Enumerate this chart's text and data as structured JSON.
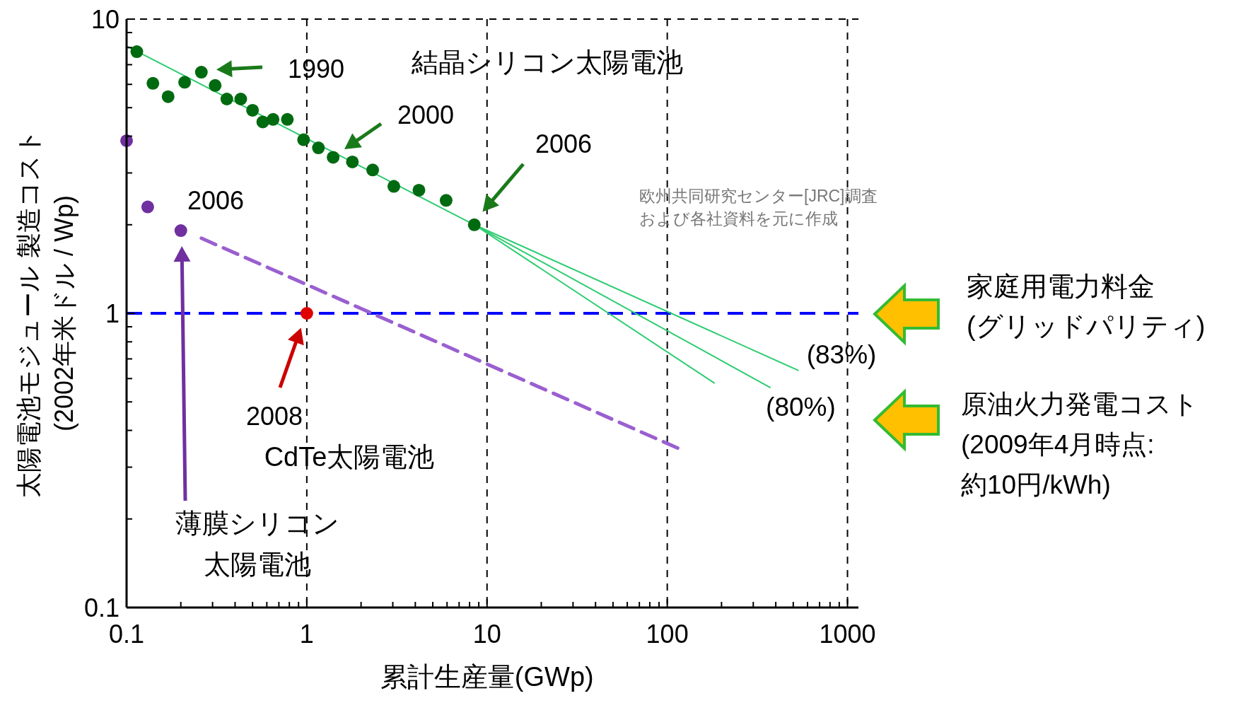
{
  "chart_data": {
    "type": "scatter",
    "xlabel": "累計生産量(GWp)",
    "ylabel": "太陽電池モジュール 製造コスト\n(2002年米ドル / Wp)",
    "log": "xy",
    "grid": "x",
    "xlim": [
      0.1,
      1150
    ],
    "ylim": [
      0.1,
      10
    ],
    "xticks": [
      0.1,
      {
        "value": 0.2,
        "label": null
      },
      {
        "value": 0.3,
        "label": null
      },
      {
        "value": 0.4,
        "label": null
      },
      {
        "value": 0.5,
        "label": null
      },
      {
        "value": 0.6,
        "label": null
      },
      {
        "value": 0.7,
        "label": null
      },
      {
        "value": 0.8,
        "label": null
      },
      {
        "value": 0.9,
        "label": null
      },
      1,
      {
        "value": 2,
        "label": null
      },
      {
        "value": 3,
        "label": null
      },
      {
        "value": 4,
        "label": null
      },
      {
        "value": 5,
        "label": null
      },
      {
        "value": 6,
        "label": null
      },
      {
        "value": 7,
        "label": null
      },
      {
        "value": 8,
        "label": null
      },
      {
        "value": 9,
        "label": null
      },
      10,
      {
        "value": 20,
        "label": null
      },
      {
        "value": 30,
        "label": null
      },
      {
        "value": 40,
        "label": null
      },
      {
        "value": 50,
        "label": null
      },
      {
        "value": 60,
        "label": null
      },
      {
        "value": 70,
        "label": null
      },
      {
        "value": 80,
        "label": null
      },
      {
        "value": 90,
        "label": null
      },
      100,
      {
        "value": 200,
        "label": null
      },
      {
        "value": 300,
        "label": null
      },
      {
        "value": 400,
        "label": null
      },
      {
        "value": 500,
        "label": null
      },
      {
        "value": 600,
        "label": null
      },
      {
        "value": 700,
        "label": null
      },
      {
        "value": 800,
        "label": null
      },
      {
        "value": 900,
        "label": null
      },
      1000
    ],
    "yticks": [
      0.1,
      {
        "value": 0.2,
        "label": null
      },
      {
        "value": 0.3,
        "label": null
      },
      {
        "value": 0.4,
        "label": null
      },
      {
        "value": 0.5,
        "label": null
      },
      {
        "value": 0.6,
        "label": null
      },
      {
        "value": 0.7,
        "label": null
      },
      {
        "value": 0.8,
        "label": null
      },
      {
        "value": 0.9,
        "label": null
      },
      1,
      {
        "value": 2,
        "label": null
      },
      {
        "value": 3,
        "label": null
      },
      {
        "value": 4,
        "label": null
      },
      {
        "value": 5,
        "label": null
      },
      {
        "value": 6,
        "label": null
      },
      {
        "value": 7,
        "label": null
      },
      {
        "value": 8,
        "label": null
      },
      {
        "value": 9,
        "label": null
      },
      10
    ],
    "ref_lines": [
      {
        "axis": "y",
        "value": 1,
        "color": "#0000ff",
        "line_style": "dashed"
      }
    ],
    "series": [
      {
        "marker": "circle",
        "color": "#006a10",
        "x": [
          0.114,
          0.14,
          0.17,
          0.21,
          0.26,
          0.31,
          0.36,
          0.43,
          0.5,
          0.57,
          0.65,
          0.78,
          0.96,
          1.16,
          1.4,
          1.79,
          2.32,
          3.04,
          4.19,
          5.93,
          8.5
        ],
        "values": [
          7.75,
          6.05,
          5.45,
          6.1,
          6.6,
          5.95,
          5.35,
          5.35,
          4.9,
          4.47,
          4.56,
          4.56,
          3.89,
          3.65,
          3.39,
          3.27,
          3.07,
          2.7,
          2.62,
          2.42,
          2.0
        ]
      },
      {
        "type": "line",
        "line_style": "solid",
        "color": "#2ecc71",
        "x": [
          0.1,
          8.5
        ],
        "values": [
          8.1,
          2.0
        ]
      },
      {
        "type": "line",
        "line_style": "solid",
        "color": "#2ecc71",
        "name": "(83%)",
        "x": [
          8.5,
          532
        ],
        "values": [
          2.0,
          0.64
        ]
      },
      {
        "type": "line",
        "line_style": "solid",
        "color": "#2ecc71",
        "name": "(80%)",
        "x": [
          8.5,
          372
        ],
        "values": [
          2.0,
          0.56
        ]
      },
      {
        "type": "line",
        "line_style": "solid",
        "color": "#2ecc71",
        "x": [
          8.5,
          182
        ],
        "values": [
          2.0,
          0.58
        ]
      },
      {
        "marker": "circle",
        "color": "#7030a0",
        "x": [
          0.1,
          0.131,
          0.2
        ],
        "values": [
          3.86,
          2.3,
          1.91
        ]
      },
      {
        "type": "line",
        "line_style": "dashed",
        "color": "#9a5fd0",
        "x": [
          0.26,
          121
        ],
        "values": [
          1.8,
          0.343
        ]
      },
      {
        "marker": "circle",
        "color": "#e00000",
        "x": [
          1
        ],
        "values": [
          1
        ]
      }
    ],
    "annotations": [
      "結晶シリコン太陽電池",
      "1990",
      {
        "text": "2000",
        "x": 1.5,
        "y": 3.5
      },
      "2006",
      "2006",
      "薄膜シリコン太陽電池",
      "2008",
      "CdTe太陽電池",
      "欧州共同研究センター[JRC]調査および各社資料を元に作成",
      "家庭用電力料金\n(グリッドパリティ)",
      "原油火力発電コスト\n(2009年4月時点:\n約10円/kWh)"
    ]
  }
}
